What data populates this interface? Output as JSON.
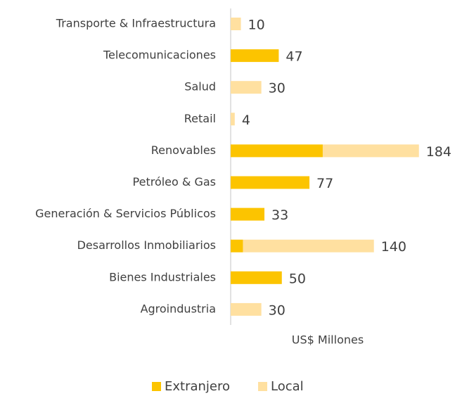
{
  "chart_data": {
    "type": "stacked-barh",
    "categories": [
      "Transporte & Infraestructura",
      "Telecomunicaciones",
      "Salud",
      "Retail",
      "Renovables",
      "Petróleo & Gas",
      "Generación & Servicios Públicos",
      "Desarrollos Inmobiliarios",
      "Bienes Industriales",
      "Agroindustria"
    ],
    "series": [
      {
        "name": "Extranjero",
        "color": "#fcc400",
        "values": [
          0,
          47,
          0,
          0,
          90,
          77,
          33,
          12,
          50,
          0
        ]
      },
      {
        "name": "Local",
        "color": "#ffe0a0",
        "values": [
          10,
          0,
          30,
          4,
          94,
          0,
          0,
          128,
          0,
          30
        ]
      }
    ],
    "totals": [
      10,
      47,
      30,
      4,
      184,
      77,
      33,
      140,
      50,
      30
    ],
    "xlabel": "US$ Millones",
    "xlim": [
      0,
      200
    ],
    "legend": "bottom"
  }
}
